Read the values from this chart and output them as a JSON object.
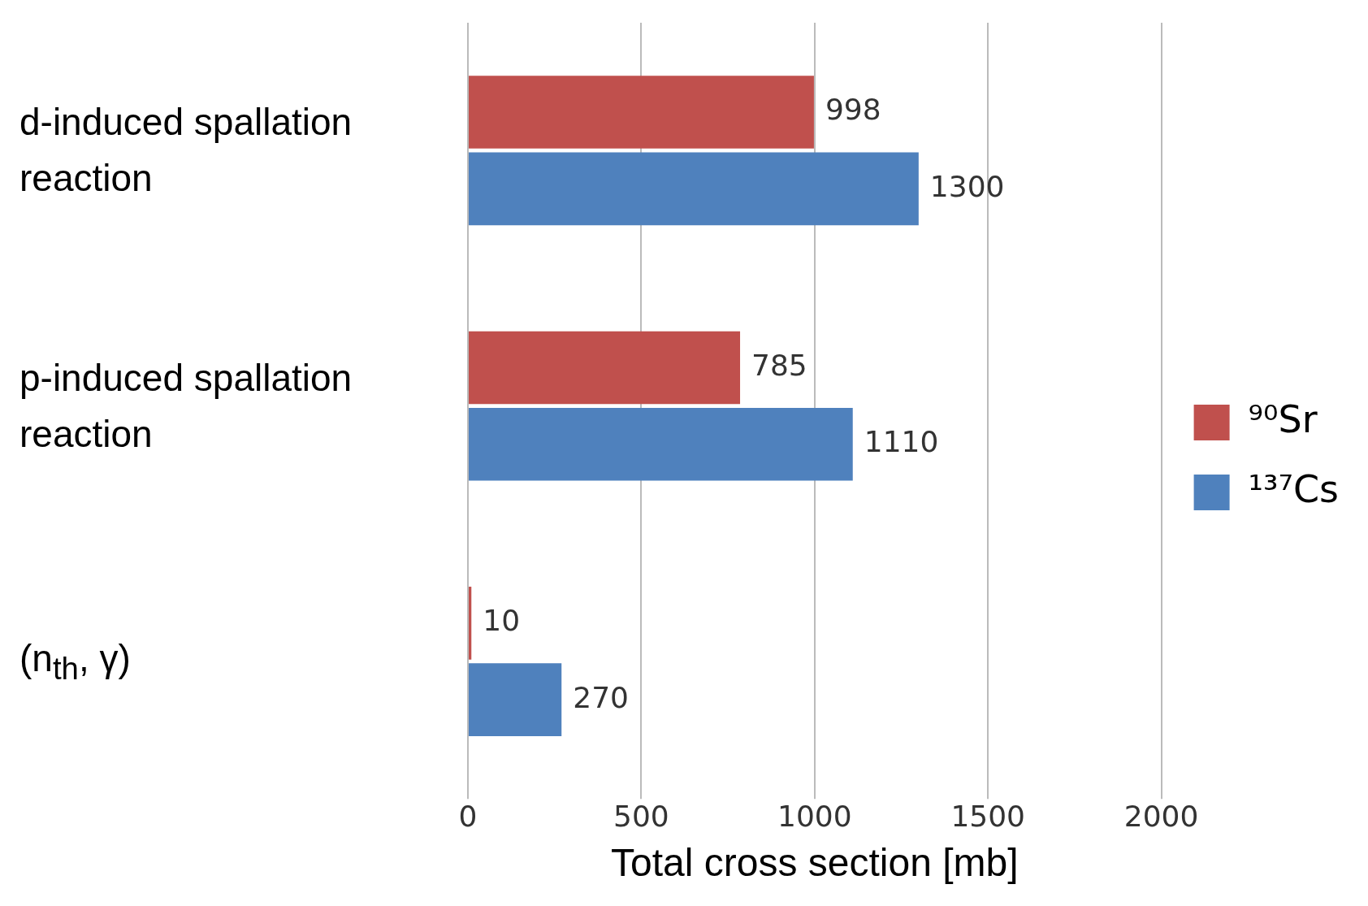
{
  "chart_data": {
    "type": "bar",
    "orientation": "horizontal",
    "xlabel": "Total cross section [mb]",
    "categories": [
      "d-induced spallation reaction",
      "p-induced spallation reaction",
      "(n$_{th}$, γ)"
    ],
    "series": [
      {
        "name": "⁹⁰Sr",
        "color": "#c0504d",
        "values": [
          998,
          785,
          10
        ]
      },
      {
        "name": "¹³⁷Cs",
        "color": "#4f81bd",
        "values": [
          1300,
          1110,
          270
        ]
      }
    ],
    "xlim": [
      0,
      2000
    ],
    "xticks": [
      0,
      500,
      1000,
      1500,
      2000
    ],
    "grid": "x",
    "legend": "right",
    "data_labels": true
  }
}
